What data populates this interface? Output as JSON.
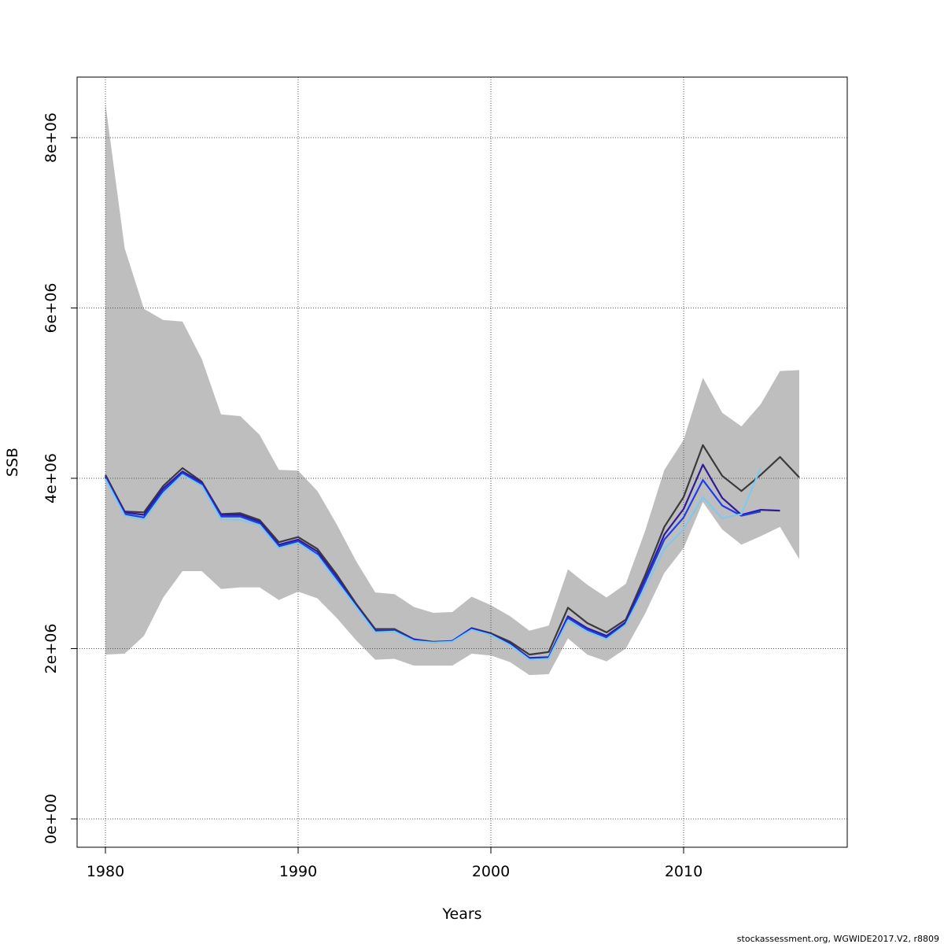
{
  "chart_data": {
    "type": "line",
    "title": "",
    "xlabel": "Years",
    "ylabel": "SSB",
    "xlim": [
      1978.5,
      2018.5
    ],
    "ylim": [
      -160000,
      8700000
    ],
    "x_ticks": [
      1980,
      1990,
      2000,
      2010
    ],
    "x_tick_labels": [
      "1980",
      "1990",
      "2000",
      "2010"
    ],
    "y_ticks": [
      0,
      2000000,
      4000000,
      6000000,
      8000000
    ],
    "y_tick_labels": [
      "0e+00",
      "2e+06",
      "4e+06",
      "6e+06",
      "8e+06"
    ],
    "grid": true,
    "credit": "stockassessment.org, WGWIDE2017.V2, r8809",
    "band": {
      "color": "#bebebe",
      "x": [
        1980,
        1981,
        1982,
        1983,
        1984,
        1985,
        1986,
        1987,
        1988,
        1989,
        1990,
        1991,
        1992,
        1993,
        1994,
        1995,
        1996,
        1997,
        1998,
        1999,
        2000,
        2001,
        2002,
        2003,
        2004,
        2005,
        2006,
        2007,
        2008,
        2009,
        2010,
        2011,
        2012,
        2013,
        2014,
        2015,
        2016
      ],
      "upper": [
        8400000,
        6700000,
        5990000,
        5860000,
        5840000,
        5400000,
        4750000,
        4730000,
        4510000,
        4100000,
        4090000,
        3850000,
        3460000,
        3030000,
        2660000,
        2640000,
        2490000,
        2420000,
        2430000,
        2610000,
        2510000,
        2380000,
        2210000,
        2270000,
        2930000,
        2750000,
        2600000,
        2760000,
        3380000,
        4100000,
        4450000,
        5180000,
        4770000,
        4610000,
        4870000,
        5260000,
        5270000
      ],
      "lower": [
        1930000,
        1940000,
        2150000,
        2600000,
        2910000,
        2910000,
        2700000,
        2720000,
        2720000,
        2570000,
        2670000,
        2590000,
        2360000,
        2100000,
        1870000,
        1880000,
        1800000,
        1800000,
        1800000,
        1940000,
        1920000,
        1840000,
        1690000,
        1700000,
        2120000,
        1930000,
        1850000,
        2000000,
        2410000,
        2890000,
        3180000,
        3720000,
        3400000,
        3220000,
        3320000,
        3430000,
        3050000
      ]
    },
    "series": [
      {
        "color": "#3a3a3a",
        "x": [
          1980,
          1981,
          1982,
          1983,
          1984,
          1985,
          1986,
          1987,
          1988,
          1989,
          1990,
          1991,
          1992,
          1993,
          1994,
          1995,
          1996,
          1997,
          1998,
          1999,
          2000,
          2001,
          2002,
          2003,
          2004,
          2005,
          2006,
          2007,
          2008,
          2009,
          2010,
          2011,
          2012,
          2013,
          2014,
          2015,
          2016
        ],
        "values": [
          4040000,
          3610000,
          3600000,
          3910000,
          4120000,
          3960000,
          3580000,
          3590000,
          3510000,
          3250000,
          3310000,
          3170000,
          2870000,
          2530000,
          2230000,
          2230000,
          2110000,
          2080000,
          2090000,
          2240000,
          2180000,
          2080000,
          1930000,
          1960000,
          2480000,
          2300000,
          2190000,
          2340000,
          2860000,
          3430000,
          3780000,
          4390000,
          4030000,
          3850000,
          4040000,
          4250000,
          4010000
        ]
      },
      {
        "color": "#311b92",
        "x": [
          1980,
          1981,
          1982,
          1983,
          1984,
          1985,
          1986,
          1987,
          1988,
          1989,
          1990,
          1991,
          1992,
          1993,
          1994,
          1995,
          1996,
          1997,
          1998,
          1999,
          2000,
          2001,
          2002,
          2003,
          2004,
          2005,
          2006,
          2007,
          2008,
          2009,
          2010,
          2011,
          2012,
          2013,
          2014,
          2015
        ],
        "values": [
          4020000,
          3600000,
          3570000,
          3880000,
          4080000,
          3950000,
          3570000,
          3570000,
          3490000,
          3220000,
          3280000,
          3140000,
          2840000,
          2510000,
          2210000,
          2210000,
          2110000,
          2070000,
          2090000,
          2240000,
          2170000,
          2060000,
          1890000,
          1900000,
          2380000,
          2240000,
          2150000,
          2310000,
          2810000,
          3340000,
          3640000,
          4160000,
          3770000,
          3570000,
          3630000,
          3620000
        ]
      },
      {
        "color": "#1e3cf0",
        "x": [
          1980,
          1981,
          1982,
          1983,
          1984,
          1985,
          1986,
          1987,
          1988,
          1989,
          1990,
          1991,
          1992,
          1993,
          1994,
          1995,
          1996,
          1997,
          1998,
          1999,
          2000,
          2001,
          2002,
          2003,
          2004,
          2005,
          2006,
          2007,
          2008,
          2009,
          2010,
          2011,
          2012,
          2013,
          2014
        ],
        "values": [
          4010000,
          3580000,
          3540000,
          3850000,
          4060000,
          3930000,
          3550000,
          3550000,
          3470000,
          3200000,
          3260000,
          3110000,
          2820000,
          2500000,
          2200000,
          2210000,
          2100000,
          2070000,
          2090000,
          2230000,
          2160000,
          2050000,
          1880000,
          1890000,
          2360000,
          2220000,
          2130000,
          2290000,
          2780000,
          3280000,
          3540000,
          3980000,
          3680000,
          3560000,
          3610000
        ]
      },
      {
        "color": "#7fc8f0",
        "x": [
          1980,
          1981,
          1982,
          1983,
          1984,
          1985,
          1986,
          1987,
          1988,
          1989,
          1990,
          1991,
          1992,
          1993,
          1994,
          1995,
          1996,
          1997,
          1998,
          1999,
          2000,
          2001,
          2002,
          2003,
          2004,
          2005,
          2006,
          2007,
          2008,
          2009,
          2010,
          2011,
          2012,
          2013,
          2014
        ],
        "values": [
          3990000,
          3560000,
          3510000,
          3820000,
          4040000,
          3910000,
          3520000,
          3510000,
          3450000,
          3180000,
          3240000,
          3090000,
          2790000,
          2490000,
          2190000,
          2200000,
          2090000,
          2070000,
          2080000,
          2220000,
          2160000,
          2040000,
          1870000,
          1880000,
          2330000,
          2200000,
          2110000,
          2280000,
          2720000,
          3170000,
          3400000,
          3780000,
          3530000,
          3580000,
          4120000
        ]
      }
    ]
  }
}
